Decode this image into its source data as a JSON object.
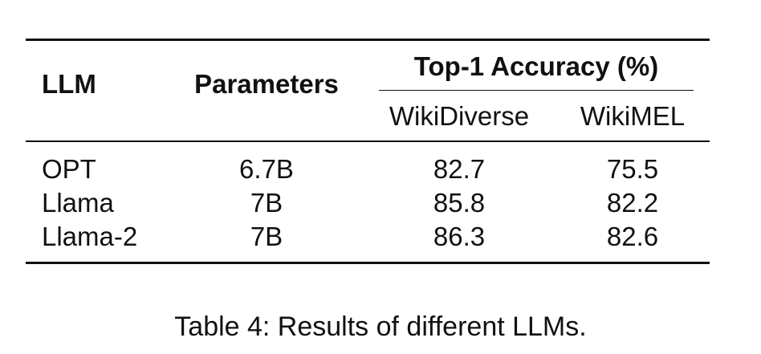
{
  "table": {
    "headers": {
      "llm": "LLM",
      "parameters": "Parameters",
      "group": "Top-1 Accuracy (%)",
      "sub": [
        "WikiDiverse",
        "WikiMEL"
      ]
    },
    "rows": [
      {
        "llm": "OPT",
        "parameters": "6.7B",
        "wikidiverse": "82.7",
        "wikimel": "75.5"
      },
      {
        "llm": "Llama",
        "parameters": "7B",
        "wikidiverse": "85.8",
        "wikimel": "82.2"
      },
      {
        "llm": "Llama-2",
        "parameters": "7B",
        "wikidiverse": "86.3",
        "wikimel": "82.6"
      }
    ]
  },
  "caption": "Table 4: Results of different LLMs."
}
